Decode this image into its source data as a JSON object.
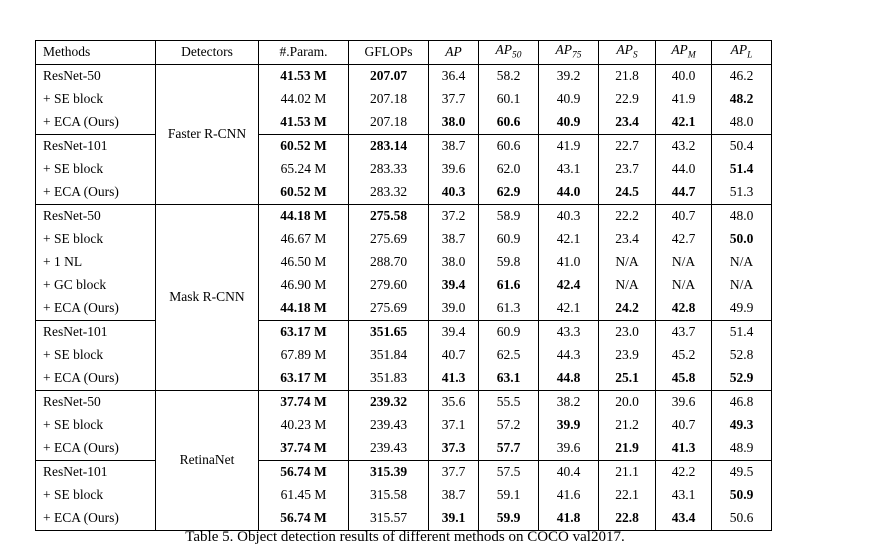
{
  "caption": "Table 5. Object detection results of different methods on COCO val2017.",
  "table": {
    "columns": [
      {
        "key": "methods",
        "label": "Methods",
        "sub": "",
        "italic": false
      },
      {
        "key": "detectors",
        "label": "Detectors",
        "sub": "",
        "italic": false
      },
      {
        "key": "params",
        "label": "#.Param.",
        "sub": "",
        "italic": false
      },
      {
        "key": "gflops",
        "label": "GFLOPs",
        "sub": "",
        "italic": false
      },
      {
        "key": "ap",
        "label": "AP",
        "sub": "",
        "italic": true
      },
      {
        "key": "ap50",
        "label": "AP",
        "sub": "50",
        "italic": true
      },
      {
        "key": "ap75",
        "label": "AP",
        "sub": "75",
        "italic": true
      },
      {
        "key": "aps",
        "label": "AP",
        "sub": "S",
        "italic": true
      },
      {
        "key": "apm",
        "label": "AP",
        "sub": "M",
        "italic": true
      },
      {
        "key": "apl",
        "label": "AP",
        "sub": "L",
        "italic": true
      }
    ],
    "groups": [
      {
        "detector": "Faster R-CNN",
        "subgroups": [
          {
            "rows": [
              {
                "method": "ResNet-50",
                "values": [
                  "41.53 M",
                  "207.07",
                  "36.4",
                  "58.2",
                  "39.2",
                  "21.8",
                  "40.0",
                  "46.2"
                ],
                "bold": [
                  1,
                  1,
                  0,
                  0,
                  0,
                  0,
                  0,
                  0
                ]
              },
              {
                "method": "+ SE block",
                "values": [
                  "44.02 M",
                  "207.18",
                  "37.7",
                  "60.1",
                  "40.9",
                  "22.9",
                  "41.9",
                  "48.2"
                ],
                "bold": [
                  0,
                  0,
                  0,
                  0,
                  0,
                  0,
                  0,
                  1
                ]
              },
              {
                "method": "+ ECA (Ours)",
                "values": [
                  "41.53 M",
                  "207.18",
                  "38.0",
                  "60.6",
                  "40.9",
                  "23.4",
                  "42.1",
                  "48.0"
                ],
                "bold": [
                  1,
                  0,
                  1,
                  1,
                  1,
                  1,
                  1,
                  0
                ]
              }
            ]
          },
          {
            "rows": [
              {
                "method": "ResNet-101",
                "values": [
                  "60.52 M",
                  "283.14",
                  "38.7",
                  "60.6",
                  "41.9",
                  "22.7",
                  "43.2",
                  "50.4"
                ],
                "bold": [
                  1,
                  1,
                  0,
                  0,
                  0,
                  0,
                  0,
                  0
                ]
              },
              {
                "method": "+ SE block",
                "values": [
                  "65.24 M",
                  "283.33",
                  "39.6",
                  "62.0",
                  "43.1",
                  "23.7",
                  "44.0",
                  "51.4"
                ],
                "bold": [
                  0,
                  0,
                  0,
                  0,
                  0,
                  0,
                  0,
                  1
                ]
              },
              {
                "method": "+ ECA (Ours)",
                "values": [
                  "60.52 M",
                  "283.32",
                  "40.3",
                  "62.9",
                  "44.0",
                  "24.5",
                  "44.7",
                  "51.3"
                ],
                "bold": [
                  1,
                  0,
                  1,
                  1,
                  1,
                  1,
                  1,
                  0
                ]
              }
            ]
          }
        ]
      },
      {
        "detector": "Mask R-CNN",
        "subgroups": [
          {
            "rows": [
              {
                "method": "ResNet-50",
                "values": [
                  "44.18 M",
                  "275.58",
                  "37.2",
                  "58.9",
                  "40.3",
                  "22.2",
                  "40.7",
                  "48.0"
                ],
                "bold": [
                  1,
                  1,
                  0,
                  0,
                  0,
                  0,
                  0,
                  0
                ]
              },
              {
                "method": "+ SE block",
                "values": [
                  "46.67 M",
                  "275.69",
                  "38.7",
                  "60.9",
                  "42.1",
                  "23.4",
                  "42.7",
                  "50.0"
                ],
                "bold": [
                  0,
                  0,
                  0,
                  0,
                  0,
                  0,
                  0,
                  1
                ]
              },
              {
                "method": "+ 1 NL",
                "values": [
                  "46.50 M",
                  "288.70",
                  "38.0",
                  "59.8",
                  "41.0",
                  "N/A",
                  "N/A",
                  "N/A"
                ],
                "bold": [
                  0,
                  0,
                  0,
                  0,
                  0,
                  0,
                  0,
                  0
                ]
              },
              {
                "method": "+ GC block",
                "values": [
                  "46.90 M",
                  "279.60",
                  "39.4",
                  "61.6",
                  "42.4",
                  "N/A",
                  "N/A",
                  "N/A"
                ],
                "bold": [
                  0,
                  0,
                  1,
                  1,
                  1,
                  0,
                  0,
                  0
                ]
              },
              {
                "method": "+ ECA (Ours)",
                "values": [
                  "44.18 M",
                  "275.69",
                  "39.0",
                  "61.3",
                  "42.1",
                  "24.2",
                  "42.8",
                  "49.9"
                ],
                "bold": [
                  1,
                  0,
                  0,
                  0,
                  0,
                  1,
                  1,
                  0
                ]
              }
            ]
          },
          {
            "rows": [
              {
                "method": "ResNet-101",
                "values": [
                  "63.17 M",
                  "351.65",
                  "39.4",
                  "60.9",
                  "43.3",
                  "23.0",
                  "43.7",
                  "51.4"
                ],
                "bold": [
                  1,
                  1,
                  0,
                  0,
                  0,
                  0,
                  0,
                  0
                ]
              },
              {
                "method": "+ SE block",
                "values": [
                  "67.89 M",
                  "351.84",
                  "40.7",
                  "62.5",
                  "44.3",
                  "23.9",
                  "45.2",
                  "52.8"
                ],
                "bold": [
                  0,
                  0,
                  0,
                  0,
                  0,
                  0,
                  0,
                  0
                ]
              },
              {
                "method": "+ ECA (Ours)",
                "values": [
                  "63.17 M",
                  "351.83",
                  "41.3",
                  "63.1",
                  "44.8",
                  "25.1",
                  "45.8",
                  "52.9"
                ],
                "bold": [
                  1,
                  0,
                  1,
                  1,
                  1,
                  1,
                  1,
                  1
                ]
              }
            ]
          }
        ]
      },
      {
        "detector": "RetinaNet",
        "subgroups": [
          {
            "rows": [
              {
                "method": "ResNet-50",
                "values": [
                  "37.74 M",
                  "239.32",
                  "35.6",
                  "55.5",
                  "38.2",
                  "20.0",
                  "39.6",
                  "46.8"
                ],
                "bold": [
                  1,
                  1,
                  0,
                  0,
                  0,
                  0,
                  0,
                  0
                ]
              },
              {
                "method": "+ SE block",
                "values": [
                  "40.23 M",
                  "239.43",
                  "37.1",
                  "57.2",
                  "39.9",
                  "21.2",
                  "40.7",
                  "49.3"
                ],
                "bold": [
                  0,
                  0,
                  0,
                  0,
                  1,
                  0,
                  0,
                  1
                ]
              },
              {
                "method": "+ ECA (Ours)",
                "values": [
                  "37.74 M",
                  "239.43",
                  "37.3",
                  "57.7",
                  "39.6",
                  "21.9",
                  "41.3",
                  "48.9"
                ],
                "bold": [
                  1,
                  0,
                  1,
                  1,
                  0,
                  1,
                  1,
                  0
                ]
              }
            ]
          },
          {
            "rows": [
              {
                "method": "ResNet-101",
                "values": [
                  "56.74 M",
                  "315.39",
                  "37.7",
                  "57.5",
                  "40.4",
                  "21.1",
                  "42.2",
                  "49.5"
                ],
                "bold": [
                  1,
                  1,
                  0,
                  0,
                  0,
                  0,
                  0,
                  0
                ]
              },
              {
                "method": "+ SE block",
                "values": [
                  "61.45 M",
                  "315.58",
                  "38.7",
                  "59.1",
                  "41.6",
                  "22.1",
                  "43.1",
                  "50.9"
                ],
                "bold": [
                  0,
                  0,
                  0,
                  0,
                  0,
                  0,
                  0,
                  1
                ]
              },
              {
                "method": "+ ECA (Ours)",
                "values": [
                  "56.74 M",
                  "315.57",
                  "39.1",
                  "59.9",
                  "41.8",
                  "22.8",
                  "43.4",
                  "50.6"
                ],
                "bold": [
                  1,
                  0,
                  1,
                  1,
                  1,
                  1,
                  1,
                  0
                ]
              }
            ]
          }
        ]
      }
    ]
  }
}
